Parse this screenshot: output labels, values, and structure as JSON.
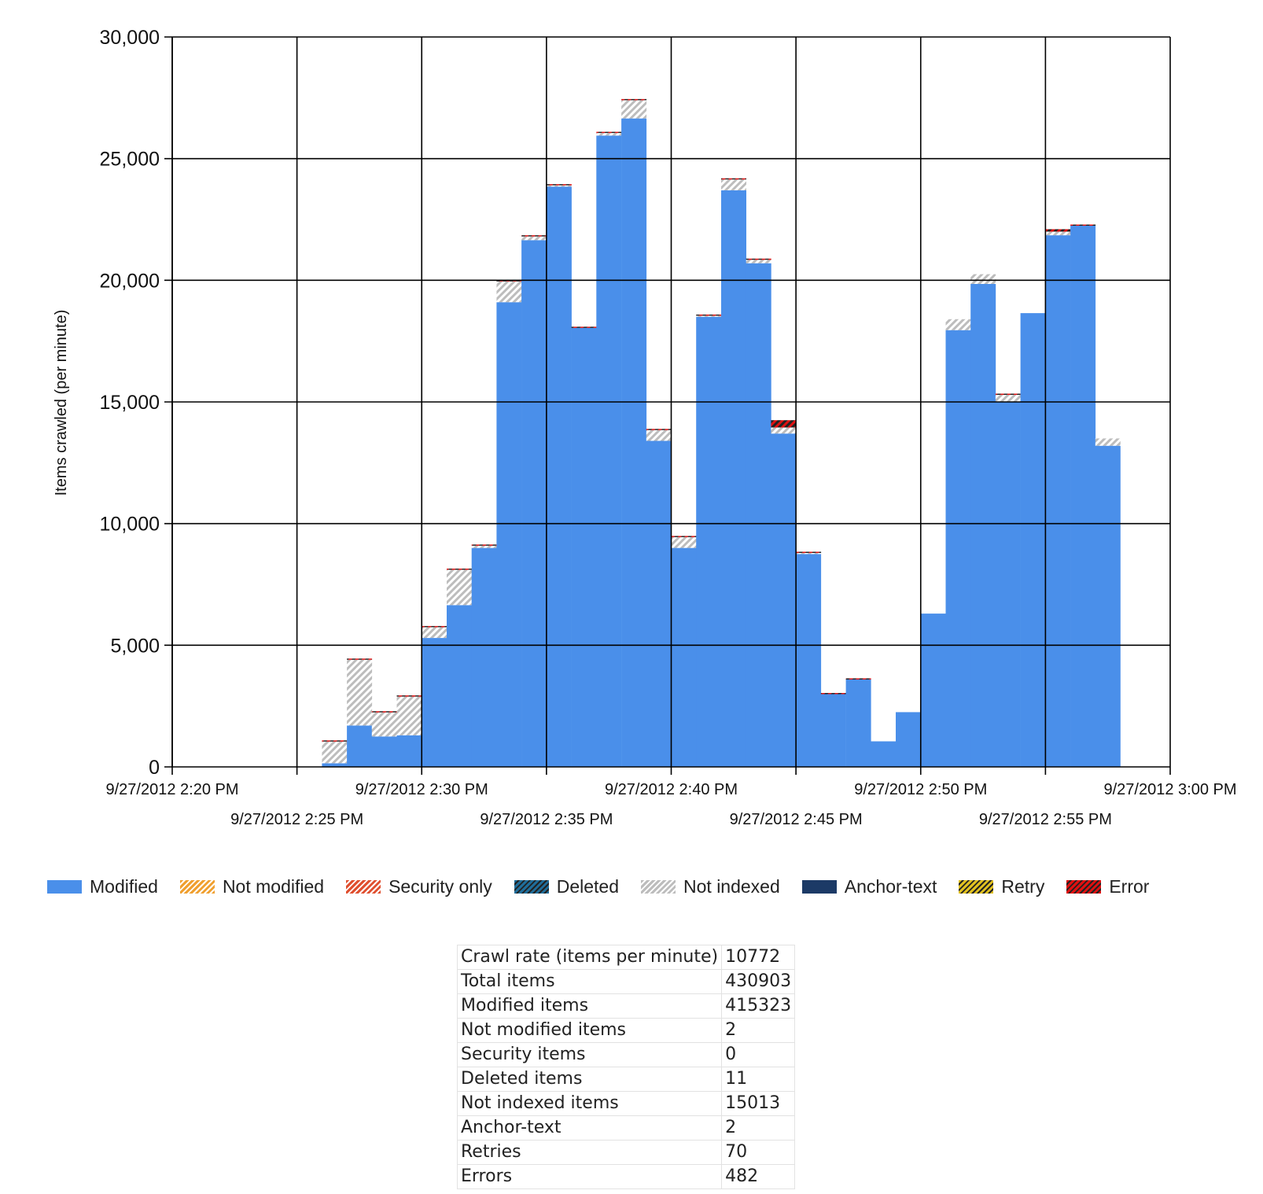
{
  "chart_data": {
    "type": "bar",
    "stacked": true,
    "ylabel": "Items crawled (per minute)",
    "xlabel": "",
    "ylim": [
      0,
      30000
    ],
    "yticks": [
      "0",
      "5,000",
      "10,000",
      "15,000",
      "20,000",
      "25,000",
      "30,000"
    ],
    "ytick_values": [
      0,
      5000,
      10000,
      15000,
      20000,
      25000,
      30000
    ],
    "xlim": [
      "2012-09-27 14:20",
      "2012-09-27 15:00"
    ],
    "xticks": [
      {
        "label": "9/27/2012 2:20 PM",
        "time": "14:20",
        "row": 1
      },
      {
        "label": "9/27/2012 2:25 PM",
        "time": "14:25",
        "row": 2
      },
      {
        "label": "9/27/2012 2:30 PM",
        "time": "14:30",
        "row": 1
      },
      {
        "label": "9/27/2012 2:35 PM",
        "time": "14:35",
        "row": 2
      },
      {
        "label": "9/27/2012 2:40 PM",
        "time": "14:40",
        "row": 1
      },
      {
        "label": "9/27/2012 2:45 PM",
        "time": "14:45",
        "row": 2
      },
      {
        "label": "9/27/2012 2:50 PM",
        "time": "14:50",
        "row": 1
      },
      {
        "label": "9/27/2012 2:55 PM",
        "time": "14:55",
        "row": 2
      },
      {
        "label": "9/27/2012 3:00 PM",
        "time": "15:00",
        "row": 1
      }
    ],
    "grid": true,
    "legend_position": "bottom",
    "x": [
      "14:26",
      "14:27",
      "14:28",
      "14:29",
      "14:30",
      "14:31",
      "14:32",
      "14:33",
      "14:34",
      "14:35",
      "14:36",
      "14:37",
      "14:38",
      "14:39",
      "14:40",
      "14:41",
      "14:42",
      "14:43",
      "14:44",
      "14:45",
      "14:46",
      "14:47",
      "14:48",
      "14:49",
      "14:50",
      "14:51",
      "14:52",
      "14:53",
      "14:54",
      "14:55",
      "14:56",
      "14:57"
    ],
    "bar_width_minutes": 1,
    "series": [
      {
        "name": "Modified",
        "color": "#4a8fea",
        "values": [
          150,
          1700,
          1250,
          1300,
          5300,
          6650,
          9000,
          19100,
          21650,
          23850,
          18050,
          25950,
          26650,
          13400,
          9000,
          18500,
          23700,
          20700,
          13700,
          8750,
          3000,
          3600,
          1050,
          2250,
          6300,
          17950,
          19850,
          15000,
          18650,
          21850,
          22250,
          13200
        ]
      },
      {
        "name": "Not modified",
        "color": "#f0a030",
        "values": [
          0,
          0,
          0,
          0,
          0,
          0,
          0,
          0,
          0,
          0,
          0,
          0,
          0,
          0,
          0,
          0,
          0,
          0,
          0,
          0,
          0,
          0,
          0,
          0,
          0,
          0,
          0,
          0,
          0,
          0,
          0,
          0
        ]
      },
      {
        "name": "Security only",
        "color": "#e05030",
        "values": [
          0,
          0,
          0,
          0,
          0,
          0,
          0,
          0,
          0,
          0,
          0,
          0,
          0,
          0,
          0,
          0,
          0,
          0,
          0,
          0,
          0,
          0,
          0,
          0,
          0,
          0,
          0,
          0,
          0,
          0,
          0,
          0
        ]
      },
      {
        "name": "Deleted",
        "color": "#1f6d9a",
        "values": [
          0,
          0,
          0,
          0,
          0,
          0,
          0,
          0,
          0,
          0,
          0,
          0,
          0,
          0,
          0,
          0,
          0,
          0,
          0,
          0,
          0,
          0,
          0,
          0,
          0,
          0,
          0,
          0,
          0,
          0,
          0,
          0
        ]
      },
      {
        "name": "Not indexed",
        "color": "#bdbdbd",
        "values": [
          900,
          2700,
          1000,
          1600,
          450,
          1450,
          100,
          850,
          150,
          50,
          0,
          100,
          750,
          450,
          450,
          50,
          450,
          150,
          250,
          50,
          0,
          0,
          0,
          0,
          0,
          450,
          400,
          300,
          0,
          150,
          0,
          300
        ]
      },
      {
        "name": "Anchor-text",
        "color": "#1c3a66",
        "values": [
          0,
          0,
          0,
          0,
          0,
          0,
          0,
          0,
          0,
          0,
          0,
          0,
          0,
          0,
          0,
          0,
          0,
          0,
          0,
          0,
          0,
          0,
          0,
          0,
          0,
          0,
          0,
          0,
          0,
          0,
          0,
          0
        ]
      },
      {
        "name": "Retry",
        "color": "#e0c020",
        "values": [
          0,
          0,
          0,
          0,
          0,
          0,
          0,
          0,
          0,
          0,
          0,
          0,
          0,
          0,
          0,
          0,
          0,
          0,
          0,
          0,
          0,
          0,
          0,
          0,
          0,
          0,
          0,
          0,
          0,
          0,
          0,
          0
        ]
      },
      {
        "name": "Error",
        "color": "#e01010",
        "values": [
          40,
          50,
          40,
          40,
          40,
          50,
          40,
          50,
          50,
          50,
          40,
          50,
          50,
          40,
          40,
          40,
          40,
          40,
          300,
          40,
          40,
          40,
          0,
          0,
          0,
          0,
          0,
          40,
          0,
          100,
          40,
          0
        ]
      }
    ]
  },
  "legend": [
    {
      "name": "Modified",
      "color": "#4a8fea",
      "pattern": "solid"
    },
    {
      "name": "Not modified",
      "color": "#f0a030",
      "pattern": "hatch"
    },
    {
      "name": "Security only",
      "color": "#e05030",
      "pattern": "hatch"
    },
    {
      "name": "Deleted",
      "color": "#1f6d9a",
      "pattern": "hatch-dark"
    },
    {
      "name": "Not indexed",
      "color": "#bdbdbd",
      "pattern": "hatch"
    },
    {
      "name": "Anchor-text",
      "color": "#1c3a66",
      "pattern": "solid"
    },
    {
      "name": "Retry",
      "color": "#e0c020",
      "pattern": "hatch-dark"
    },
    {
      "name": "Error",
      "color": "#e01010",
      "pattern": "hatch-dark"
    }
  ],
  "stats": [
    {
      "label": "Crawl rate (items per minute)",
      "value": "10772"
    },
    {
      "label": "Total items",
      "value": "430903"
    },
    {
      "label": "Modified items",
      "value": "415323"
    },
    {
      "label": "Not modified items",
      "value": "2"
    },
    {
      "label": "Security items",
      "value": "0"
    },
    {
      "label": "Deleted items",
      "value": "11"
    },
    {
      "label": "Not indexed items",
      "value": "15013"
    },
    {
      "label": "Anchor-text",
      "value": "2"
    },
    {
      "label": "Retries",
      "value": "70"
    },
    {
      "label": "Errors",
      "value": "482"
    }
  ]
}
